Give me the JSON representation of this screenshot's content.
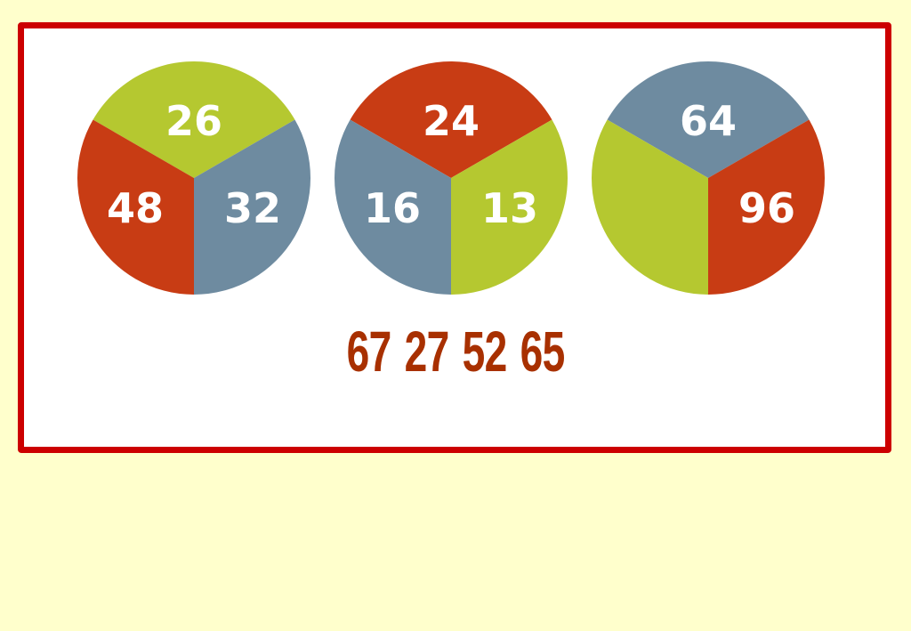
{
  "colors": {
    "background": "#ffffcc",
    "frame": "#cc0000",
    "green": "#b5c830",
    "red": "#c83c14",
    "blue": "#6e8ba0",
    "answer_text": "#a83000"
  },
  "circles": [
    {
      "top": {
        "color": "green",
        "value": "26"
      },
      "left": {
        "color": "red",
        "value": "48"
      },
      "right": {
        "color": "blue",
        "value": "32"
      }
    },
    {
      "top": {
        "color": "red",
        "value": "24"
      },
      "left": {
        "color": "blue",
        "value": "16"
      },
      "right": {
        "color": "green",
        "value": "13"
      }
    },
    {
      "top": {
        "color": "blue",
        "value": "64"
      },
      "left": {
        "color": "green",
        "value": ""
      },
      "right": {
        "color": "red",
        "value": "96"
      }
    }
  ],
  "answer_options": [
    "67",
    "27",
    "52",
    "65"
  ]
}
